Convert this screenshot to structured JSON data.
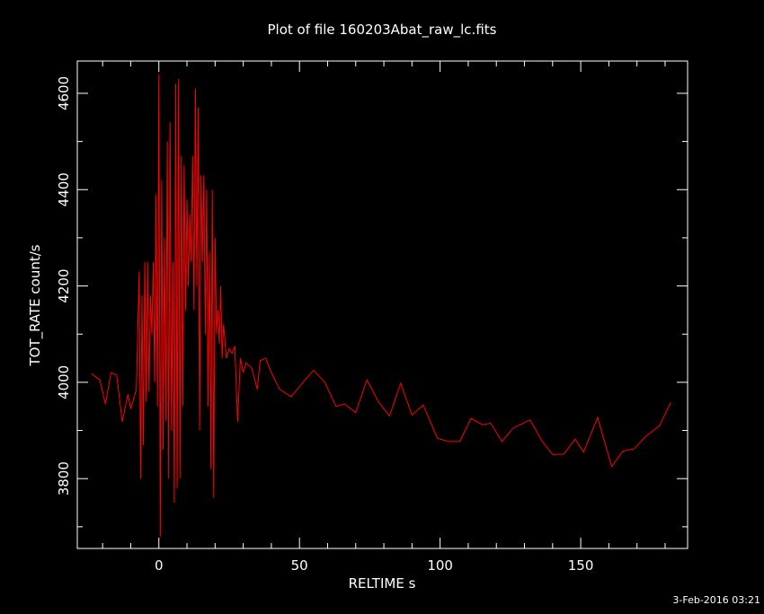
{
  "chart_data": {
    "type": "line",
    "title": "Plot of file 160203Abat_raw_lc.fits",
    "xlabel": "RELTIME  s",
    "ylabel": "TOT_RATE  count/s",
    "footer": "3-Feb-2016 03:21",
    "xlim": [
      -29,
      188
    ],
    "ylim": [
      3655,
      4667
    ],
    "xticks": [
      0,
      50,
      100,
      150
    ],
    "yticks": [
      3800,
      4000,
      4200,
      4400,
      4600
    ],
    "xminorticks": [
      -20,
      -10,
      10,
      20,
      30,
      40,
      60,
      70,
      80,
      90,
      110,
      120,
      130,
      140,
      160,
      170,
      180
    ],
    "yminorticks": [
      3700,
      3900,
      4100,
      4300,
      4500
    ],
    "background": "#000000",
    "axis_color": "#ffffff",
    "series": [
      {
        "color": "#ff0000",
        "x": [
          -24,
          -21,
          -19,
          -17,
          -15,
          -13,
          -11,
          -10,
          -8,
          -7,
          -6.5,
          -6,
          -5.5,
          -5,
          -4.5,
          -4,
          -3.5,
          -3,
          -2.5,
          -2,
          -1.5,
          -1,
          -0.5,
          0,
          0.5,
          1,
          1.5,
          2,
          2.5,
          3,
          3.5,
          4,
          4.5,
          5,
          5.5,
          6,
          6.5,
          7,
          7.5,
          8,
          8.5,
          9,
          9.5,
          10,
          10.5,
          11,
          11.5,
          12,
          12.5,
          13,
          13.5,
          14,
          14.5,
          15,
          15.5,
          16,
          16.5,
          17,
          17.5,
          18,
          18.5,
          19,
          19.5,
          20,
          20.5,
          21,
          21.5,
          22,
          22.5,
          23,
          24,
          25,
          26,
          27,
          28,
          29,
          30,
          31,
          33,
          35,
          36,
          38,
          40,
          43,
          47,
          52,
          55,
          59,
          63,
          66,
          70,
          74,
          78,
          82,
          86,
          90,
          94,
          99,
          103,
          107,
          111,
          115,
          118,
          122,
          126,
          132,
          136,
          140,
          144,
          148,
          151,
          156,
          161,
          165,
          169,
          173,
          178,
          182
        ],
        "values": [
          4018,
          4005,
          3955,
          4020,
          4015,
          3918,
          3975,
          3945,
          3985,
          4230,
          3800,
          4180,
          3870,
          4250,
          3960,
          4250,
          3980,
          4180,
          4100,
          4250,
          4000,
          4390,
          3950,
          4640,
          3680,
          4420,
          3860,
          4300,
          3920,
          4500,
          3800,
          4540,
          3900,
          4250,
          3750,
          4620,
          3780,
          4630,
          3800,
          4470,
          3950,
          4450,
          4150,
          4380,
          4200,
          4350,
          4250,
          4470,
          4150,
          4610,
          4200,
          4570,
          3900,
          4430,
          4250,
          4430,
          4100,
          4400,
          3950,
          4270,
          3820,
          4400,
          3760,
          4300,
          4100,
          4150,
          4080,
          4200,
          4050,
          4120,
          4050,
          4070,
          4060,
          4075,
          3918,
          4050,
          4020,
          4040,
          4030,
          3985,
          4045,
          4050,
          4020,
          3985,
          3970,
          4005,
          4025,
          4000,
          3950,
          3955,
          3937,
          4005,
          3960,
          3930,
          3998,
          3932,
          3953,
          3884,
          3877,
          3877,
          3925,
          3912,
          3915,
          3877,
          3905,
          3922,
          3880,
          3850,
          3851,
          3882,
          3855,
          3927,
          3825,
          3857,
          3862,
          3887,
          3910,
          3958
        ]
      }
    ]
  }
}
